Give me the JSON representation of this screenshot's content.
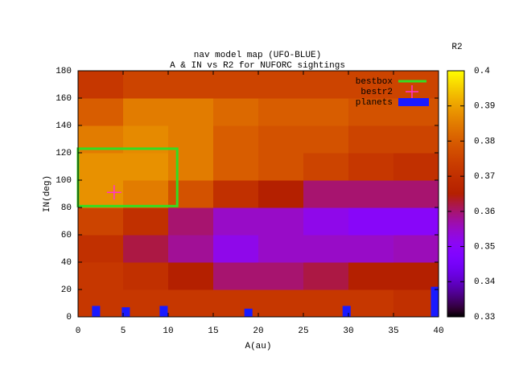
{
  "chart_data": {
    "type": "heatmap",
    "title": "nav model map (UFO-BLUE)",
    "subtitle": "A & IN vs R2 for NUFORC sightings",
    "x_label": "A(au)",
    "y_label": "IN(deg)",
    "colorbar_label": "R2",
    "xlim": [
      0,
      40
    ],
    "ylim": [
      0,
      180
    ],
    "xticks": [
      0,
      5,
      10,
      15,
      20,
      25,
      30,
      35,
      40
    ],
    "yticks": [
      0,
      20,
      40,
      60,
      80,
      100,
      120,
      140,
      160,
      180
    ],
    "zlim": [
      0.33,
      0.4
    ],
    "zticks": [
      0.33,
      0.34,
      0.35,
      0.36,
      0.37,
      0.38,
      0.39,
      0.4
    ],
    "palette": "gnuplot",
    "x_edges": [
      0,
      5,
      10,
      15,
      20,
      25,
      30,
      35,
      40
    ],
    "y_edges": [
      0,
      20,
      40,
      60,
      80,
      100,
      120,
      140,
      160,
      180
    ],
    "z": [
      [
        0.372,
        0.372,
        0.372,
        0.372,
        0.372,
        0.372,
        0.372,
        0.37
      ],
      [
        0.372,
        0.37,
        0.365,
        0.36,
        0.36,
        0.362,
        0.365,
        0.365
      ],
      [
        0.37,
        0.362,
        0.358,
        0.352,
        0.355,
        0.355,
        0.355,
        0.356
      ],
      [
        0.375,
        0.37,
        0.36,
        0.355,
        0.355,
        0.352,
        0.35,
        0.35
      ],
      [
        0.388,
        0.385,
        0.378,
        0.37,
        0.365,
        0.36,
        0.36,
        0.36
      ],
      [
        0.388,
        0.388,
        0.385,
        0.38,
        0.378,
        0.375,
        0.372,
        0.37
      ],
      [
        0.385,
        0.387,
        0.385,
        0.38,
        0.378,
        0.378,
        0.375,
        0.375
      ],
      [
        0.38,
        0.385,
        0.385,
        0.382,
        0.38,
        0.38,
        0.378,
        0.378
      ],
      [
        0.372,
        0.375,
        0.375,
        0.375,
        0.375,
        0.375,
        0.375,
        0.375
      ]
    ],
    "bestbox": {
      "name": "bestbox",
      "color": "#33dd22",
      "x": [
        0,
        11
      ],
      "y": [
        81,
        123
      ]
    },
    "bestr2": {
      "name": "bestr2",
      "color": "#ff33cc",
      "x": 4,
      "y": 91
    },
    "planets": {
      "name": "planets",
      "color": "#1a1aff",
      "width": 0.9,
      "x": [
        2,
        5.3,
        9.5,
        18.9,
        29.8,
        39.6
      ],
      "values": [
        8,
        7,
        8,
        6,
        8,
        22
      ]
    }
  }
}
